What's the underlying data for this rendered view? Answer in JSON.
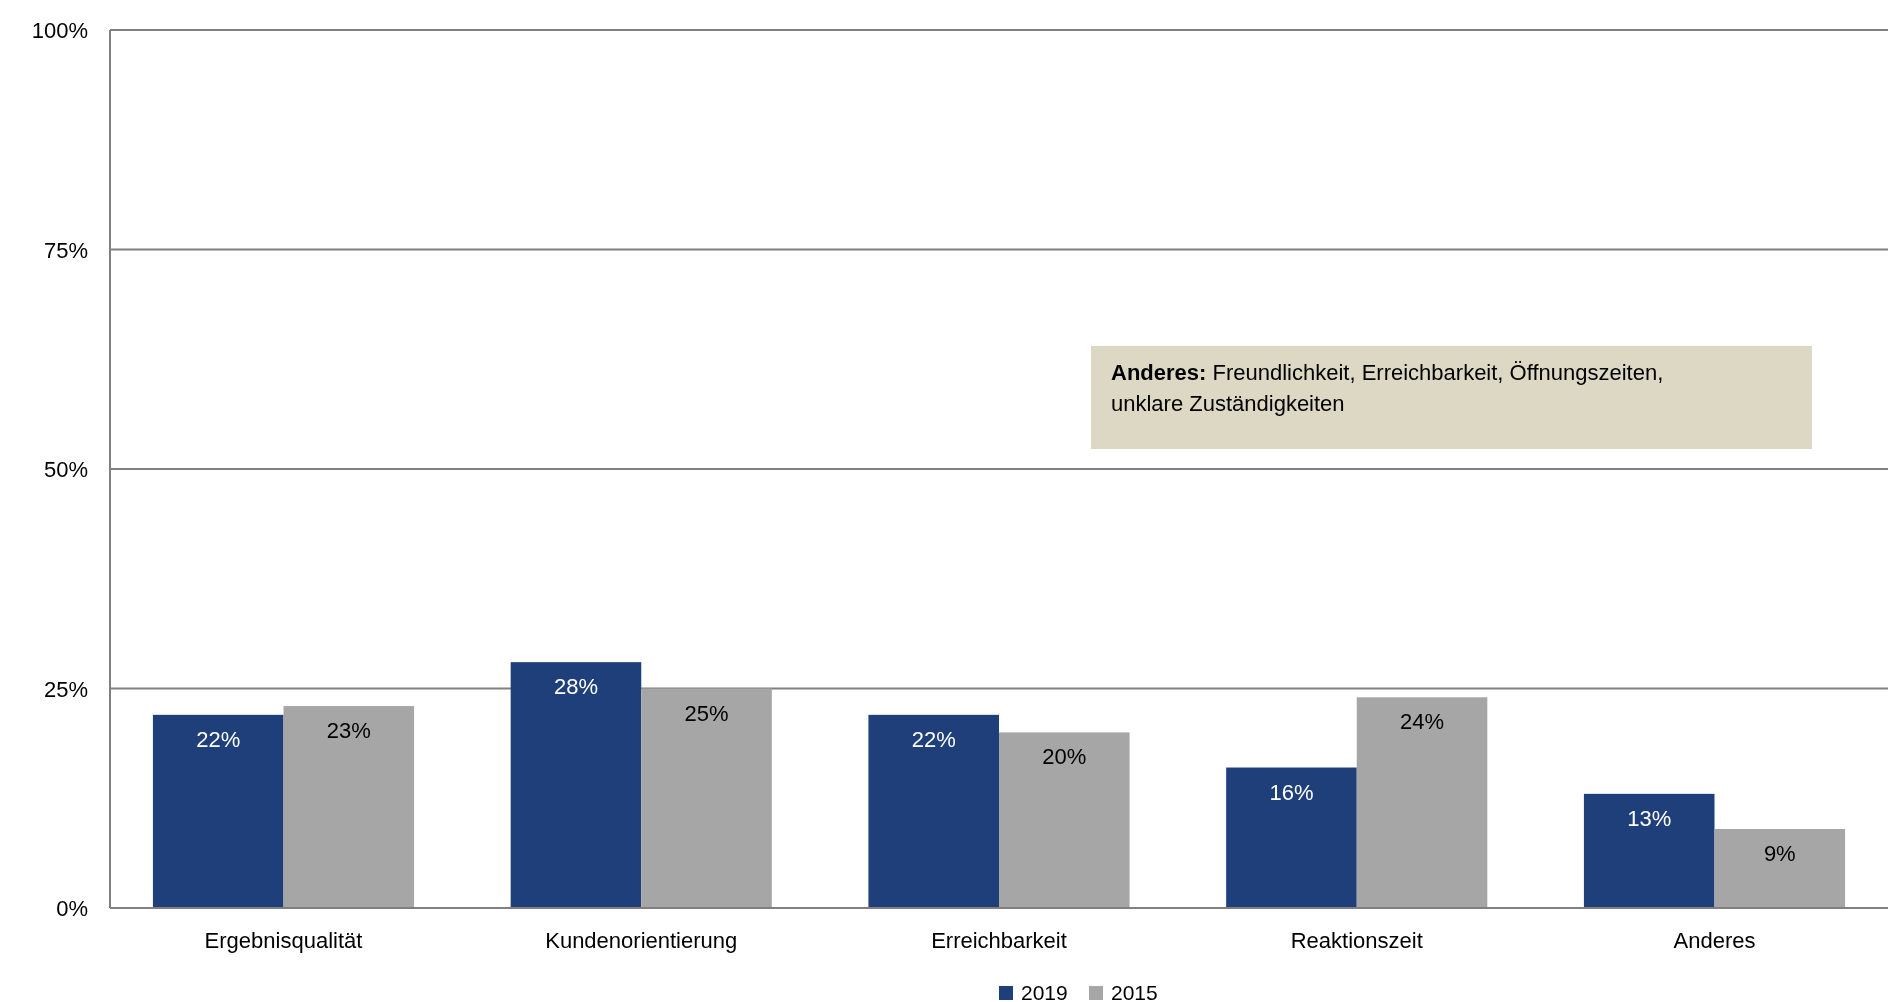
{
  "chart_data": {
    "type": "bar",
    "categories": [
      "Ergebnisqualität",
      "Kundenorientierung",
      "Erreichbarkeit",
      "Reaktionszeit",
      "Anderes"
    ],
    "series": [
      {
        "name": "2019",
        "color": "#1f3f7a",
        "values": [
          22,
          28,
          22,
          16,
          13
        ],
        "value_labels": [
          "22%",
          "28%",
          "22%",
          "16%",
          "13%"
        ]
      },
      {
        "name": "2015",
        "color": "#a6a6a6",
        "values": [
          23,
          25,
          20,
          24,
          9
        ],
        "value_labels": [
          "23%",
          "25%",
          "20%",
          "24%",
          "9%"
        ]
      }
    ],
    "ylim": [
      0,
      100
    ],
    "yticks": [
      {
        "value": 0,
        "label": "0%"
      },
      {
        "value": 25,
        "label": "25%"
      },
      {
        "value": 50,
        "label": "50%"
      },
      {
        "value": 75,
        "label": "75%"
      },
      {
        "value": 100,
        "label": "100%"
      }
    ],
    "grid": "y",
    "legend": "bottom",
    "annotations": [
      "Anderes: Freundlichkeit, Erreichbarkeit, Öffnungszeiten, unklare Zuständigkeiten"
    ]
  }
}
